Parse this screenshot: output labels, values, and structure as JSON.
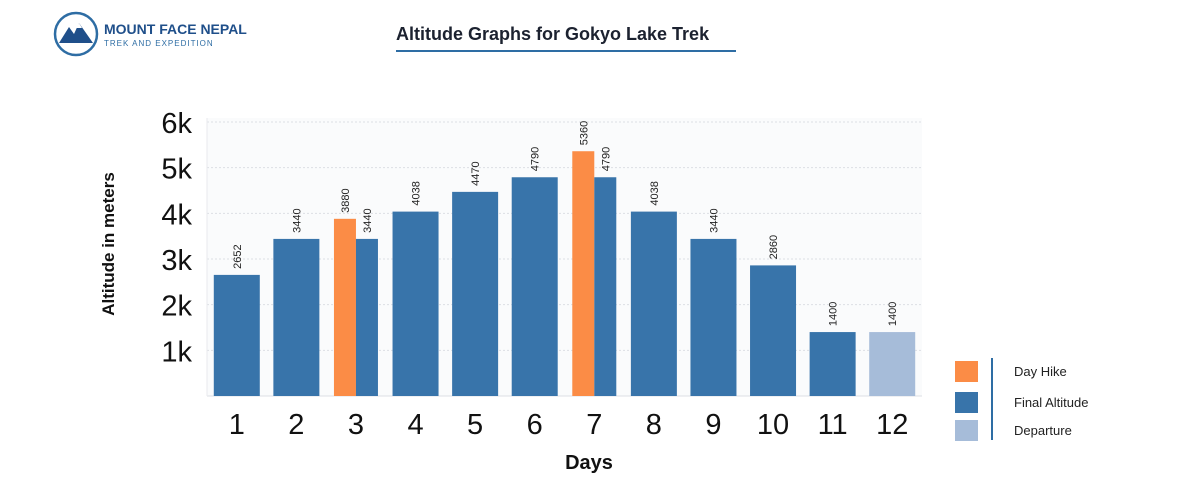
{
  "brand": {
    "name": "MOUNT FACE NEPAL",
    "tagline": "TREK AND EXPEDITION"
  },
  "chart_data": {
    "type": "bar",
    "title": "Altitude Graphs for  Gokyo Lake Trek",
    "xlabel": "Days",
    "ylabel": "Altitude in meters",
    "ylim": [
      0,
      6000
    ],
    "yticks": [
      1000,
      2000,
      3000,
      4000,
      5000,
      6000
    ],
    "ytick_labels": [
      "1k",
      "2k",
      "3k",
      "4k",
      "5k",
      "6k"
    ],
    "grid": true,
    "legend_position": "bottom-right",
    "categories": [
      "1",
      "2",
      "3",
      "4",
      "5",
      "6",
      "7",
      "8",
      "9",
      "10",
      "11",
      "12"
    ],
    "series": [
      {
        "name": "Day Hike",
        "color": "#fb8c46",
        "values": [
          null,
          null,
          3880,
          null,
          null,
          null,
          5360,
          null,
          null,
          null,
          null,
          null
        ]
      },
      {
        "name": "Final  Altitude",
        "color": "#3874aa",
        "values": [
          2652,
          3440,
          3440,
          4038,
          4470,
          4790,
          4790,
          4038,
          3440,
          2860,
          1400,
          null
        ]
      },
      {
        "name": "Departure",
        "color": "#a6bcd9",
        "values": [
          null,
          null,
          null,
          null,
          null,
          null,
          null,
          null,
          null,
          null,
          null,
          1400
        ]
      }
    ]
  }
}
